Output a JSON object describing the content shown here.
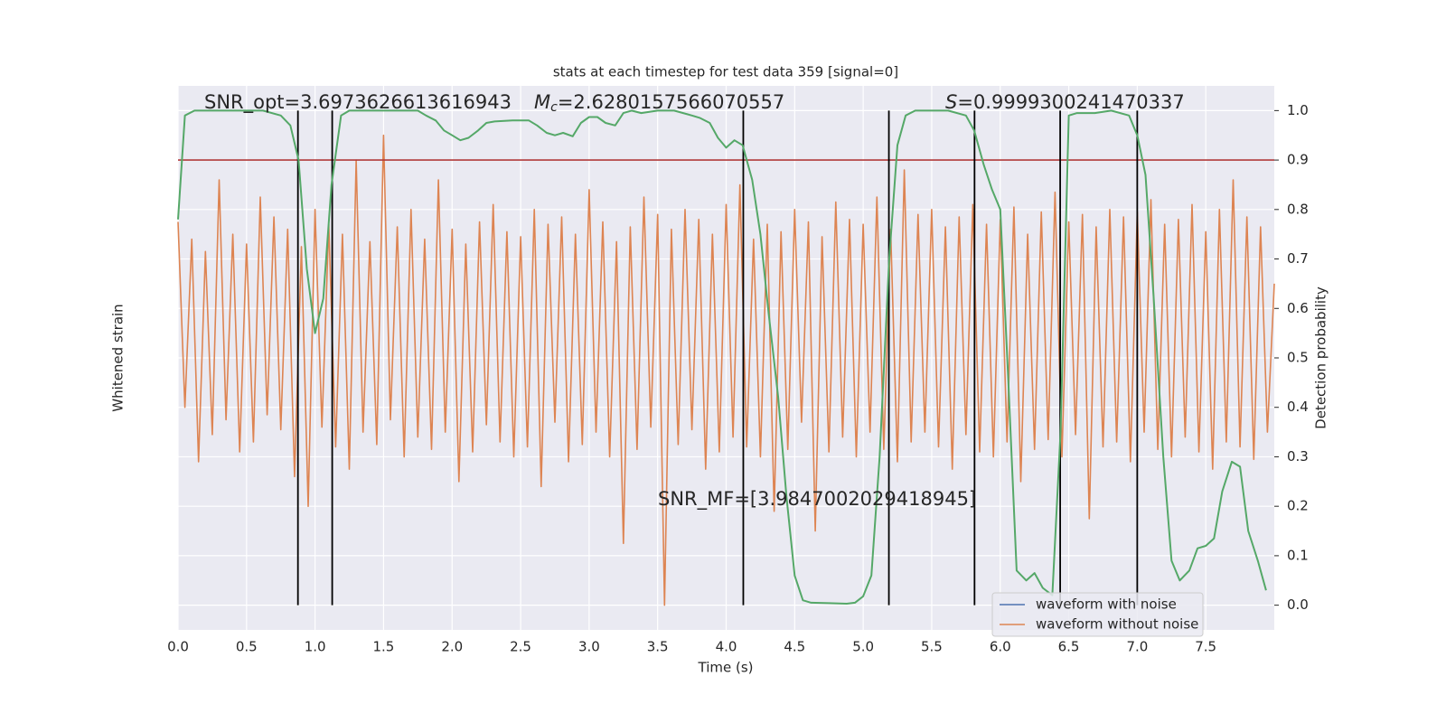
{
  "chart_data": {
    "type": "line",
    "title": "stats at each timestep for test data 359 [signal=0]",
    "x_label": "Time (s)",
    "y_label": "Whitened strain",
    "y2_label": "Detection probability",
    "xlim": [
      0,
      8.0
    ],
    "xticks": [
      {
        "value": 0,
        "label": "0.0"
      },
      0.5,
      {
        "value": 1,
        "label": "1.0"
      },
      1.5,
      {
        "value": 2,
        "label": "2.0"
      },
      2.5,
      {
        "value": 3,
        "label": "3.0"
      },
      3.5,
      {
        "value": 4,
        "label": "4.0"
      },
      4.5,
      {
        "value": 5,
        "label": "5.0"
      },
      5.5,
      {
        "value": 6,
        "label": "6.0"
      },
      6.5,
      {
        "value": 7,
        "label": "7.0"
      },
      7.5
    ],
    "ylim": [
      -1.2,
      1.0
    ],
    "y2lim": [
      -0.05,
      1.05
    ],
    "y2ticks": [
      {
        "value": 0,
        "label": "0.0"
      },
      0.1,
      0.2,
      0.3,
      0.4,
      0.5,
      0.6,
      0.7,
      0.8,
      0.9,
      {
        "value": 1,
        "label": "1.0"
      }
    ],
    "grid": true,
    "legend": "lower right",
    "series": [
      {
        "name": "waveform with noise",
        "color": "#4c72b0"
      },
      {
        "name": "waveform without noise",
        "color": "#dd8452",
        "x": [
          0,
          0.05,
          0.1,
          0.15,
          0.2,
          0.25,
          0.3,
          0.35,
          0.4,
          0.45,
          0.5,
          0.55,
          0.6,
          0.65,
          0.7,
          0.75,
          0.8,
          0.85,
          0.9,
          0.95,
          1,
          1.05,
          1.1,
          1.15,
          1.2,
          1.25,
          1.3,
          1.35,
          1.4,
          1.45,
          1.5,
          1.55,
          1.6,
          1.65,
          1.7,
          1.75,
          1.8,
          1.85,
          1.9,
          1.95,
          2,
          2.05,
          2.1,
          2.15,
          2.2,
          2.25,
          2.3,
          2.35,
          2.4,
          2.45,
          2.5,
          2.55,
          2.6,
          2.65,
          2.7,
          2.75,
          2.8,
          2.85,
          2.9,
          2.95,
          3,
          3.05,
          3.1,
          3.15,
          3.2,
          3.25,
          3.3,
          3.35,
          3.4,
          3.45,
          3.5,
          3.55,
          3.6,
          3.65,
          3.7,
          3.75,
          3.8,
          3.85,
          3.9,
          3.95,
          4,
          4.05,
          4.1,
          4.15,
          4.2,
          4.25,
          4.3,
          4.35,
          4.4,
          4.45,
          4.5,
          4.55,
          4.6,
          4.65,
          4.7,
          4.75,
          4.8,
          4.85,
          4.9,
          4.95,
          5,
          5.05,
          5.1,
          5.15,
          5.2,
          5.25,
          5.3,
          5.35,
          5.4,
          5.45,
          5.5,
          5.55,
          5.6,
          5.65,
          5.7,
          5.75,
          5.8,
          5.85,
          5.9,
          5.95,
          6,
          6.05,
          6.1,
          6.15,
          6.2,
          6.25,
          6.3,
          6.35,
          6.4,
          6.45,
          6.5,
          6.55,
          6.6,
          6.65,
          6.7,
          6.75,
          6.8,
          6.85,
          6.9,
          6.95,
          7,
          7.05,
          7.1,
          7.15,
          7.2,
          7.25,
          7.3,
          7.35,
          7.4,
          7.45,
          7.5,
          7.55,
          7.6,
          7.65,
          7.7,
          7.75,
          7.8,
          7.85,
          7.9,
          7.95,
          8
        ],
        "values": [
          0.45,
          -0.3,
          0.38,
          -0.52,
          0.33,
          -0.41,
          0.62,
          -0.35,
          0.4,
          -0.48,
          0.36,
          -0.44,
          0.55,
          -0.33,
          0.47,
          -0.39,
          0.42,
          -0.58,
          0.35,
          -0.7,
          0.5,
          -0.38,
          0.44,
          -0.46,
          0.4,
          -0.55,
          0.7,
          -0.4,
          0.37,
          -0.45,
          0.8,
          -0.35,
          0.43,
          -0.5,
          0.5,
          -0.42,
          0.38,
          -0.47,
          0.62,
          -0.4,
          0.42,
          -0.6,
          0.36,
          -0.48,
          0.45,
          -0.37,
          0.52,
          -0.44,
          0.41,
          -0.5,
          0.39,
          -0.46,
          0.5,
          -0.62,
          0.44,
          -0.36,
          0.47,
          -0.52,
          0.4,
          -0.45,
          0.58,
          -0.4,
          0.45,
          -0.5,
          0.37,
          -0.85,
          0.43,
          -0.47,
          0.55,
          -0.38,
          0.48,
          -1.1,
          0.42,
          -0.45,
          0.5,
          -0.39,
          0.46,
          -0.55,
          0.4,
          -0.48,
          0.52,
          -0.42,
          0.6,
          -0.46,
          0.38,
          -0.5,
          0.44,
          -0.72,
          0.41,
          -0.47,
          0.5,
          -0.36,
          0.45,
          -0.8,
          0.39,
          -0.48,
          0.53,
          -0.42,
          0.46,
          -0.5,
          0.44,
          -0.4,
          0.55,
          -0.47,
          0.42,
          -0.52,
          0.66,
          -0.44,
          0.48,
          -0.4,
          0.5,
          -0.46,
          0.43,
          -0.55,
          0.47,
          -0.41,
          0.52,
          -0.48,
          0.44,
          -0.5,
          0.46,
          -0.44,
          0.51,
          -0.6,
          0.4,
          -0.47,
          0.49,
          -0.43,
          0.57,
          -0.5,
          0.45,
          -0.41,
          0.48,
          -0.75,
          0.43,
          -0.46,
          0.5,
          -0.44,
          0.47,
          -0.52,
          0.49,
          -0.4,
          0.54,
          -0.47,
          0.44,
          -0.5,
          0.46,
          -0.42,
          0.52,
          -0.48,
          0.41,
          -0.55,
          0.5,
          -0.44,
          0.62,
          -0.46,
          0.47,
          -0.51,
          0.43,
          -0.4,
          0.2
        ]
      }
    ],
    "detection_probability": {
      "color": "#55a868",
      "x": [
        0,
        0.05,
        0.12,
        0.25,
        0.5,
        0.62,
        0.75,
        0.82,
        0.88,
        0.94,
        1,
        1.06,
        1.12,
        1.19,
        1.25,
        1.5,
        1.75,
        1.81,
        1.88,
        1.94,
        2,
        2.06,
        2.12,
        2.19,
        2.25,
        2.31,
        2.44,
        2.56,
        2.62,
        2.69,
        2.75,
        2.81,
        2.88,
        2.94,
        3,
        3.06,
        3.12,
        3.19,
        3.25,
        3.31,
        3.38,
        3.5,
        3.62,
        3.75,
        3.81,
        3.88,
        3.94,
        4,
        4.06,
        4.12,
        4.19,
        4.25,
        4.31,
        4.38,
        4.44,
        4.5,
        4.56,
        4.62,
        4.75,
        4.88,
        4.94,
        5,
        5.06,
        5.12,
        5.19,
        5.25,
        5.31,
        5.38,
        5.5,
        5.62,
        5.75,
        5.81,
        5.88,
        5.94,
        6,
        6.06,
        6.12,
        6.19,
        6.25,
        6.31,
        6.38,
        6.44,
        6.5,
        6.56,
        6.69,
        6.81,
        6.94,
        7,
        7.06,
        7.12,
        7.19,
        7.25,
        7.31,
        7.38,
        7.44,
        7.5,
        7.56,
        7.62,
        7.69,
        7.75,
        7.81,
        7.88,
        7.94
      ],
      "values": [
        0.78,
        0.99,
        1.0,
        1.0,
        1.0,
        1.0,
        0.99,
        0.97,
        0.9,
        0.68,
        0.55,
        0.62,
        0.85,
        0.99,
        1.0,
        1.0,
        1.0,
        0.99,
        0.98,
        0.96,
        0.95,
        0.94,
        0.945,
        0.96,
        0.975,
        0.978,
        0.98,
        0.98,
        0.97,
        0.955,
        0.95,
        0.955,
        0.948,
        0.975,
        0.987,
        0.987,
        0.975,
        0.97,
        0.995,
        1.0,
        0.995,
        1.0,
        1.0,
        0.99,
        0.985,
        0.975,
        0.945,
        0.925,
        0.94,
        0.93,
        0.86,
        0.75,
        0.59,
        0.42,
        0.22,
        0.06,
        0.01,
        0.005,
        0.004,
        0.003,
        0.005,
        0.018,
        0.06,
        0.3,
        0.7,
        0.93,
        0.99,
        1.0,
        1.0,
        1.0,
        0.99,
        0.96,
        0.89,
        0.84,
        0.8,
        0.45,
        0.07,
        0.05,
        0.065,
        0.035,
        0.02,
        0.35,
        0.99,
        0.995,
        0.995,
        1.0,
        0.99,
        0.95,
        0.87,
        0.62,
        0.3,
        0.09,
        0.05,
        0.07,
        0.115,
        0.12,
        0.135,
        0.23,
        0.29,
        0.28,
        0.15,
        0.09,
        0.03
      ]
    },
    "threshold": {
      "value": 0.9,
      "color": "#b03a3a"
    },
    "vlines": {
      "color": "#000000",
      "values": [
        0.875,
        1.125,
        4.125,
        5.1875,
        5.8125,
        6.4375,
        7.0
      ]
    },
    "annotations": [
      {
        "text": "SNR_opt=3.6973626613616943"
      },
      {
        "symbol": "M",
        "subscript": "c",
        "text": "=2.6280157566070557"
      },
      {
        "symbol": "S",
        "text": "=0.9999300241470337"
      },
      {
        "text": "SNR_MF=[3.9847002029418945]"
      }
    ]
  }
}
